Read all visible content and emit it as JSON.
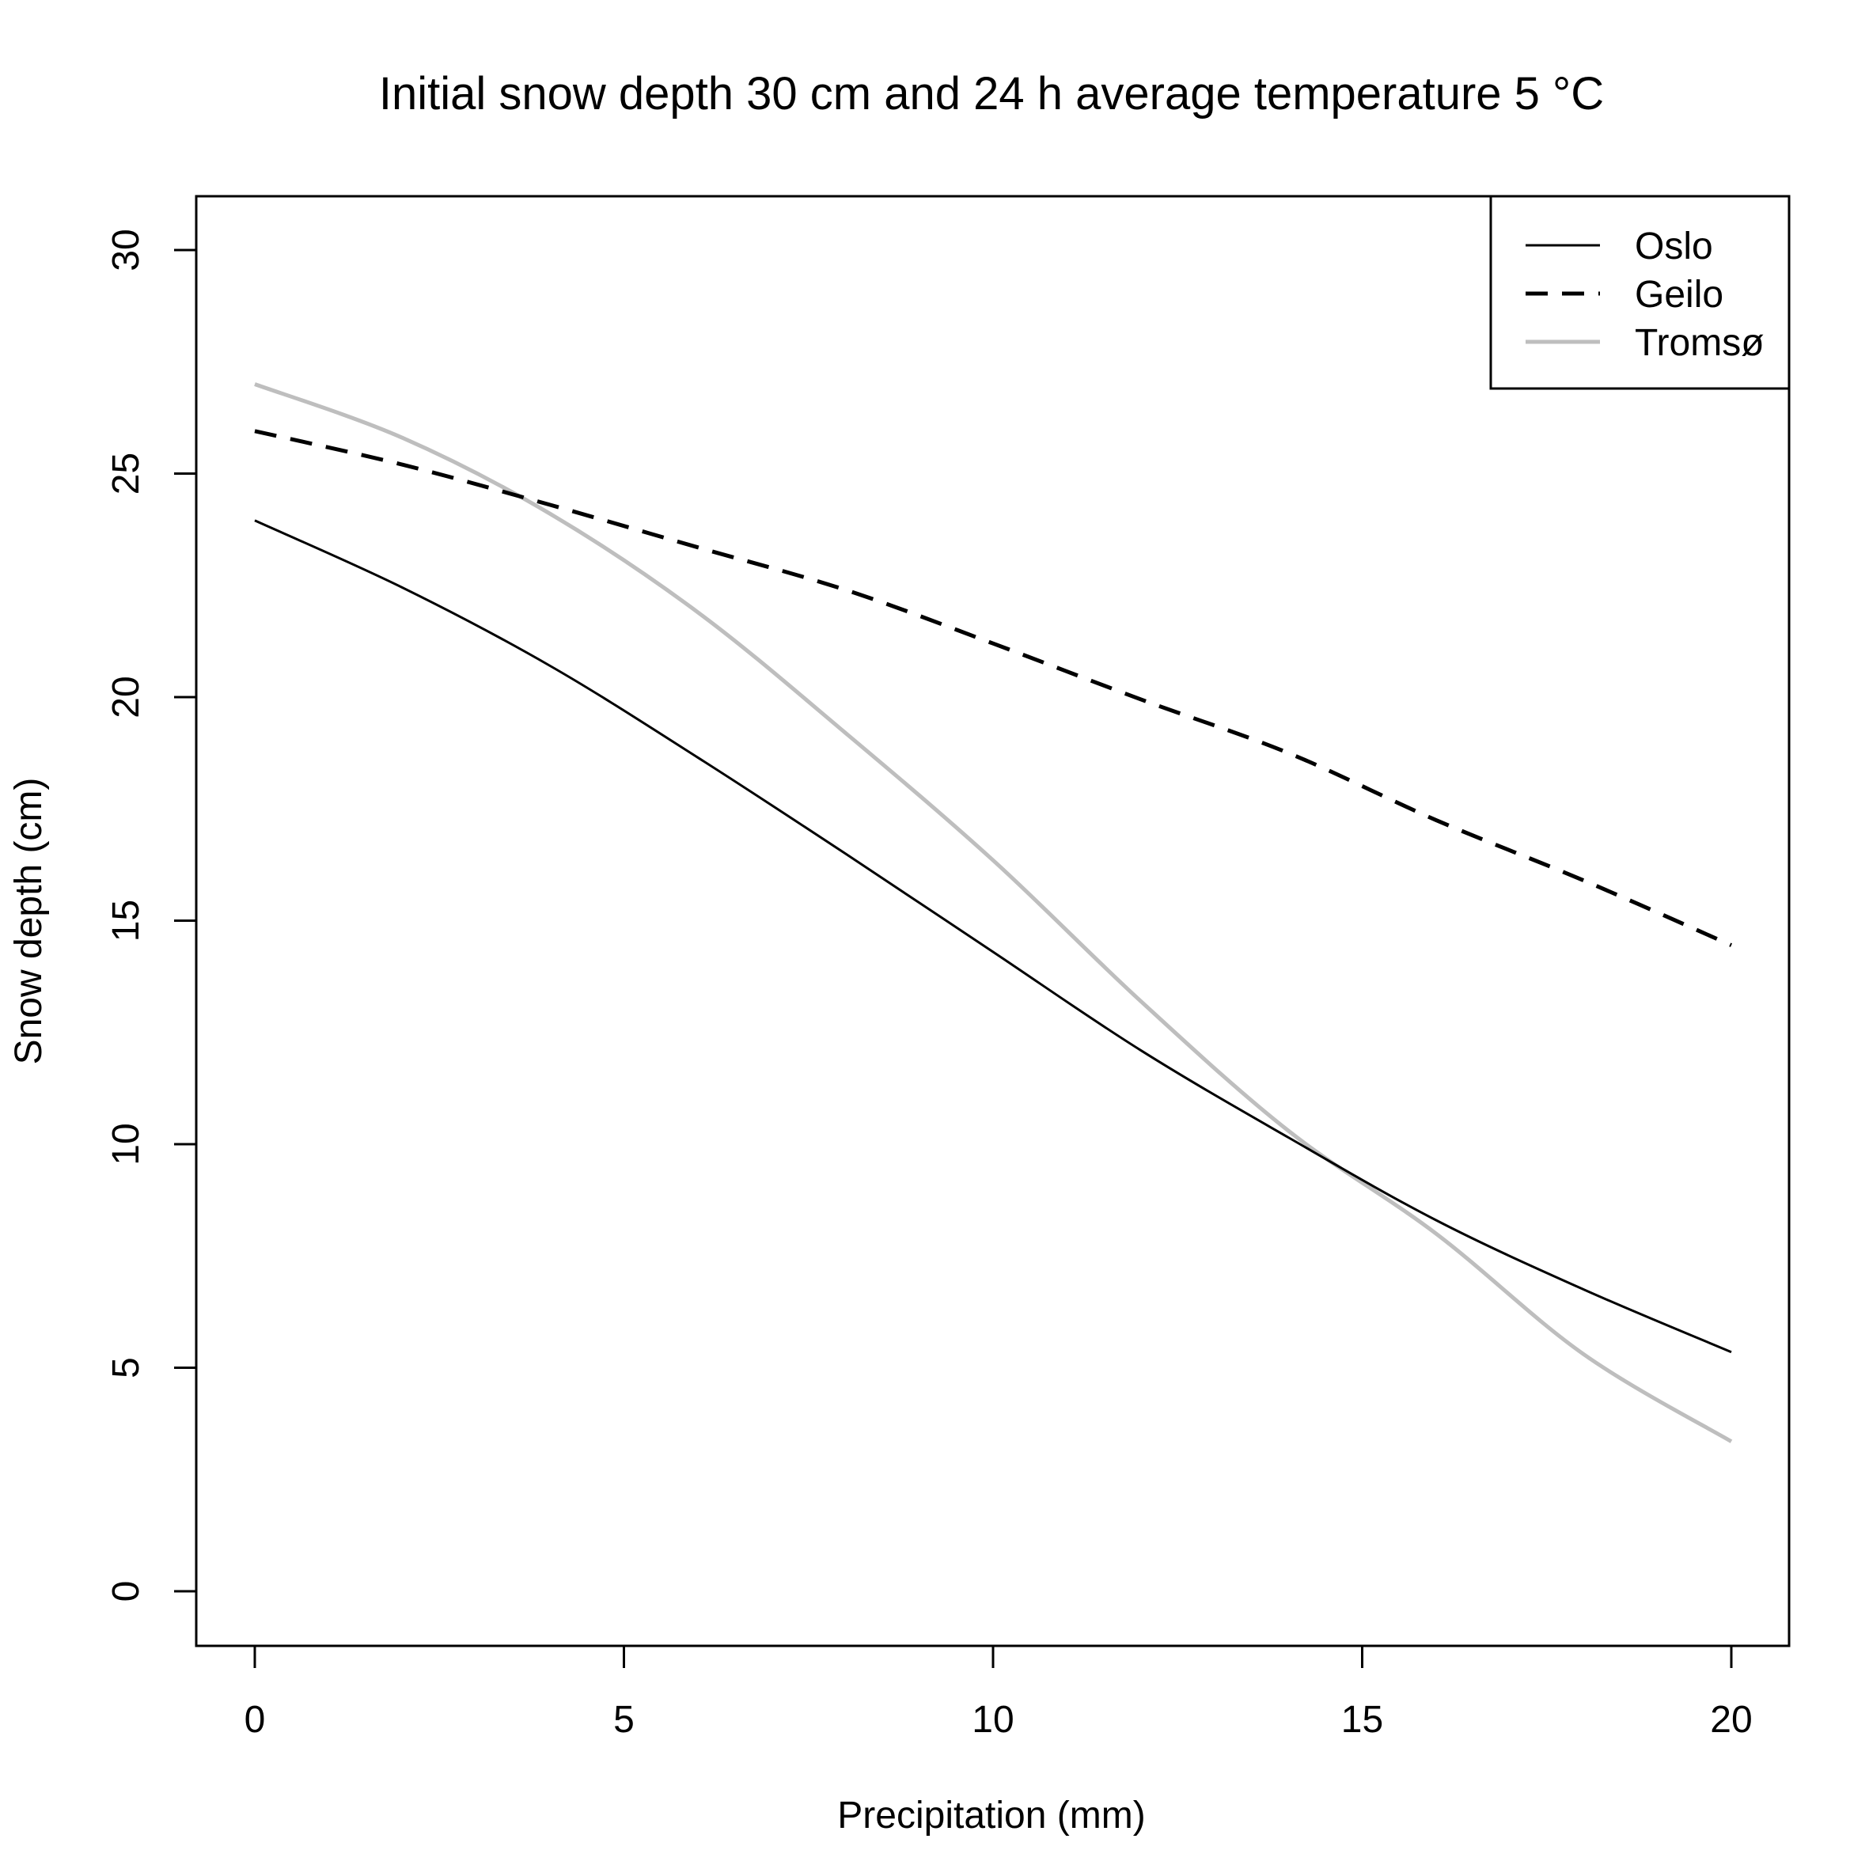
{
  "chart_data": {
    "type": "line",
    "title": "Initial snow depth 30 cm and 24 h average temperature 5 °C",
    "xlabel": "Precipitation (mm)",
    "ylabel": "Snow depth (cm)",
    "xlim": [
      0,
      20
    ],
    "ylim": [
      0,
      30
    ],
    "x_ticks": [
      "0",
      "5",
      "10",
      "15",
      "20"
    ],
    "y_ticks": [
      "0",
      "5",
      "10",
      "15",
      "20",
      "25",
      "30"
    ],
    "grid": false,
    "legend_position": "top-right",
    "x": [
      0,
      2,
      4,
      6,
      8,
      10,
      12,
      14,
      16,
      18,
      20
    ],
    "series": [
      {
        "name": "Oslo",
        "style": "solid",
        "color": "#000000",
        "values": [
          23.95,
          22.45,
          20.7,
          18.65,
          16.5,
          14.3,
          12.1,
          10.15,
          8.3,
          6.75,
          5.35
        ]
      },
      {
        "name": "Geilo",
        "style": "dashed",
        "color": "#000000",
        "values": [
          25.95,
          25.2,
          24.3,
          23.35,
          22.4,
          21.2,
          19.95,
          18.75,
          17.25,
          15.9,
          14.45
        ]
      },
      {
        "name": "Tromsø",
        "style": "solid",
        "color": "#bebebe",
        "values": [
          27.0,
          25.8,
          24.1,
          21.9,
          19.2,
          16.35,
          13.2,
          10.3,
          8.0,
          5.3,
          3.35
        ]
      }
    ]
  }
}
